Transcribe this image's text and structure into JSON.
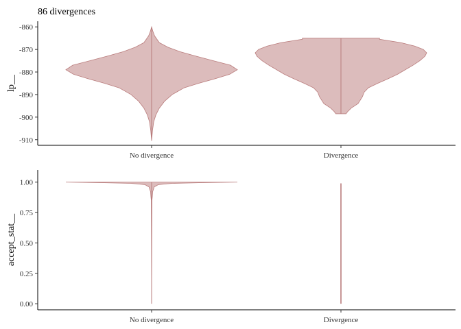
{
  "title": "86 divergences",
  "chart_data": [
    {
      "type": "violin",
      "title": "86 divergences",
      "ylabel": "lp__",
      "xlabel": "",
      "categories": [
        "No divergence",
        "Divergence"
      ],
      "y_ticks": [
        -860,
        -870,
        -880,
        -890,
        -900,
        -910
      ],
      "y_tick_labels": [
        "-860",
        "-870",
        "-880",
        "-890",
        "-900",
        "-910"
      ],
      "ylim": [
        -912.5,
        -857.5
      ],
      "grid": false,
      "colors": {
        "fill": "#dcbcbc",
        "outline": "#b97c7c"
      },
      "series": [
        {
          "category": "No divergence",
          "range": [
            -910.5,
            -860.0
          ],
          "density_profile": [
            [
              -910.5,
              0.0
            ],
            [
              -906.0,
              0.01
            ],
            [
              -902.0,
              0.025
            ],
            [
              -899.0,
              0.05
            ],
            [
              -896.0,
              0.09
            ],
            [
              -893.0,
              0.15
            ],
            [
              -890.0,
              0.24
            ],
            [
              -887.0,
              0.38
            ],
            [
              -885.0,
              0.55
            ],
            [
              -883.0,
              0.74
            ],
            [
              -881.0,
              0.91
            ],
            [
              -879.0,
              1.0
            ],
            [
              -877.0,
              0.92
            ],
            [
              -875.0,
              0.72
            ],
            [
              -873.0,
              0.52
            ],
            [
              -871.0,
              0.33
            ],
            [
              -869.0,
              0.19
            ],
            [
              -867.0,
              0.09
            ],
            [
              -864.0,
              0.035
            ],
            [
              -862.0,
              0.015
            ],
            [
              -860.0,
              0.0
            ]
          ]
        },
        {
          "category": "Divergence",
          "range": [
            -898.5,
            -865.0
          ],
          "density_profile": [
            [
              -898.5,
              0.06
            ],
            [
              -897.5,
              0.08
            ],
            [
              -896.0,
              0.12
            ],
            [
              -894.0,
              0.2
            ],
            [
              -891.0,
              0.25
            ],
            [
              -889.0,
              0.27
            ],
            [
              -887.0,
              0.32
            ],
            [
              -885.0,
              0.43
            ],
            [
              -883.0,
              0.55
            ],
            [
              -881.0,
              0.66
            ],
            [
              -879.0,
              0.75
            ],
            [
              -877.0,
              0.84
            ],
            [
              -875.0,
              0.92
            ],
            [
              -873.0,
              0.98
            ],
            [
              -871.5,
              1.0
            ],
            [
              -870.0,
              0.96
            ],
            [
              -868.5,
              0.86
            ],
            [
              -867.0,
              0.7
            ],
            [
              -865.5,
              0.45
            ],
            [
              -865.0,
              0.45
            ]
          ]
        }
      ]
    },
    {
      "type": "violin",
      "title": "",
      "ylabel": "accept_stat__",
      "xlabel": "",
      "categories": [
        "No divergence",
        "Divergence"
      ],
      "y_ticks": [
        1.0,
        0.75,
        0.5,
        0.25,
        0.0
      ],
      "y_tick_labels": [
        "1.00",
        "0.75",
        "0.50",
        "0.25",
        "0.00"
      ],
      "ylim": [
        -0.05,
        1.1
      ],
      "grid": false,
      "colors": {
        "fill": "#dcbcbc",
        "outline": "#b97c7c"
      },
      "series": [
        {
          "category": "No divergence",
          "range": [
            0.0,
            1.0
          ],
          "density_profile": [
            [
              0.0,
              0.0
            ],
            [
              0.5,
              0.002
            ],
            [
              0.85,
              0.004
            ],
            [
              0.88,
              0.008
            ],
            [
              0.92,
              0.012
            ],
            [
              0.96,
              0.03
            ],
            [
              0.98,
              0.08
            ],
            [
              0.99,
              0.24
            ],
            [
              0.995,
              0.55
            ],
            [
              1.0,
              1.0
            ]
          ]
        },
        {
          "category": "Divergence",
          "range": [
            0.0,
            0.99
          ],
          "density_profile": [
            [
              0.0,
              0.0
            ],
            [
              0.99,
              0.0
            ]
          ]
        }
      ]
    }
  ]
}
